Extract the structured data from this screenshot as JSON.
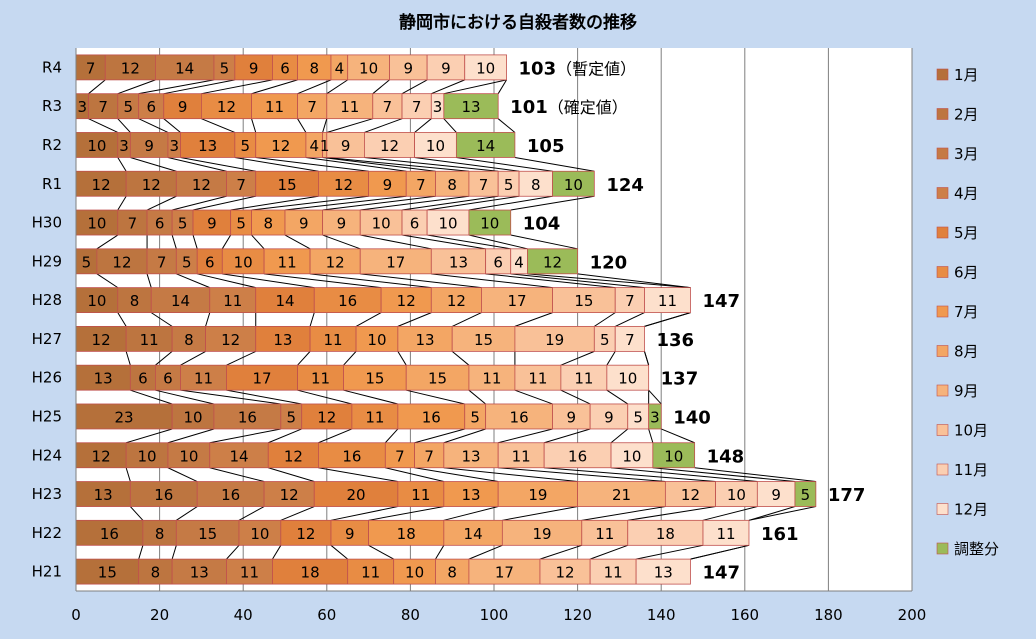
{
  "chart_data": {
    "type": "bar",
    "stacked": true,
    "orientation": "horizontal",
    "title": "静岡市における自殺者数の推移",
    "xlim": [
      0,
      200
    ],
    "xticks": [
      0,
      20,
      40,
      60,
      80,
      100,
      120,
      140,
      160,
      180,
      200
    ],
    "grid": true,
    "legend_position": "right",
    "categories": [
      "R4",
      "R3",
      "R2",
      "R1",
      "H30",
      "H29",
      "H28",
      "H27",
      "H26",
      "H25",
      "H24",
      "H23",
      "H22",
      "H21"
    ],
    "series": [
      {
        "name": "1月",
        "color": "#b5703a",
        "values": [
          7,
          3,
          10,
          12,
          10,
          5,
          10,
          12,
          13,
          23,
          12,
          13,
          16,
          15
        ]
      },
      {
        "name": "2月",
        "color": "#bd7540",
        "values": [
          12,
          7,
          3,
          12,
          7,
          12,
          8,
          11,
          6,
          10,
          10,
          16,
          8,
          8
        ]
      },
      {
        "name": "3月",
        "color": "#c57a45",
        "values": [
          14,
          5,
          9,
          12,
          6,
          7,
          14,
          8,
          6,
          16,
          10,
          16,
          15,
          13
        ]
      },
      {
        "name": "4月",
        "color": "#cd7f48",
        "values": [
          5,
          6,
          3,
          7,
          5,
          5,
          11,
          12,
          11,
          5,
          14,
          12,
          10,
          11
        ]
      },
      {
        "name": "5月",
        "color": "#e0803c",
        "values": [
          9,
          9,
          13,
          15,
          9,
          6,
          14,
          13,
          17,
          12,
          12,
          20,
          12,
          18
        ]
      },
      {
        "name": "6月",
        "color": "#e88c44",
        "values": [
          6,
          12,
          5,
          12,
          5,
          10,
          16,
          11,
          11,
          11,
          16,
          11,
          9,
          11
        ]
      },
      {
        "name": "7月",
        "color": "#f0994f",
        "values": [
          8,
          11,
          12,
          9,
          8,
          11,
          12,
          10,
          15,
          16,
          7,
          13,
          18,
          10
        ]
      },
      {
        "name": "8月",
        "color": "#f3a664",
        "values": [
          4,
          7,
          4,
          7,
          9,
          12,
          12,
          13,
          15,
          5,
          7,
          19,
          14,
          8
        ]
      },
      {
        "name": "9月",
        "color": "#f6b37c",
        "values": [
          10,
          11,
          1,
          8,
          9,
          17,
          17,
          15,
          11,
          16,
          13,
          21,
          19,
          17
        ]
      },
      {
        "name": "10月",
        "color": "#f9c198",
        "values": [
          9,
          7,
          9,
          7,
          10,
          13,
          15,
          19,
          11,
          9,
          11,
          12,
          11,
          12
        ]
      },
      {
        "name": "11月",
        "color": "#fbcfb2",
        "values": [
          9,
          7,
          12,
          5,
          6,
          6,
          7,
          5,
          11,
          9,
          16,
          10,
          18,
          11
        ]
      },
      {
        "name": "12月",
        "color": "#fde0cc",
        "values": [
          10,
          3,
          10,
          8,
          10,
          4,
          11,
          7,
          10,
          5,
          10,
          9,
          11,
          13
        ]
      },
      {
        "name": "調整分",
        "color": "#9bbb59",
        "values": [
          0,
          13,
          14,
          10,
          10,
          12,
          0,
          0,
          0,
          3,
          10,
          5,
          0,
          0
        ]
      }
    ],
    "segment_labels": [
      [
        "7",
        "12",
        "14",
        "5",
        "9",
        "6",
        "8",
        "4",
        "10",
        "9",
        "9",
        "10",
        ""
      ],
      [
        "3",
        "7",
        "5",
        "6",
        "9",
        "12",
        "11",
        "7",
        "11",
        "7",
        "7",
        "3",
        "13"
      ],
      [
        "10",
        "3",
        "9",
        "3",
        "13",
        "5",
        "12",
        "4",
        "1",
        "9",
        "12",
        "10",
        "14"
      ],
      [
        "12",
        "12",
        "12",
        "7",
        "15",
        "12",
        "9",
        "7",
        "8",
        "7",
        "5",
        "8",
        "10"
      ],
      [
        "10",
        "7",
        "6",
        "5",
        "9",
        "5",
        "8",
        "9",
        "9",
        "10",
        "6",
        "10",
        "10"
      ],
      [
        "5",
        "12",
        "7",
        "5",
        "6",
        "10",
        "11",
        "12",
        "17",
        "13",
        "6",
        "4",
        "12"
      ],
      [
        "10",
        "8",
        "14",
        "11",
        "14",
        "16",
        "12",
        "12",
        "17",
        "15",
        "7",
        "11",
        ""
      ],
      [
        "12",
        "11",
        "8",
        "12",
        "13",
        "11",
        "10",
        "13",
        "15",
        "19",
        "5",
        "7",
        ""
      ],
      [
        "13",
        "6",
        "6",
        "11",
        "17",
        "11",
        "15",
        "15",
        "11",
        "11",
        "11",
        "10",
        ""
      ],
      [
        "23",
        "10",
        "16",
        "5",
        "12",
        "11",
        "16",
        "5",
        "16",
        "9",
        "9",
        "5",
        "3"
      ],
      [
        "12",
        "10",
        "10",
        "14",
        "12",
        "16",
        "7",
        "7",
        "13",
        "11",
        "16",
        "10",
        "10"
      ],
      [
        "13",
        "16",
        "16",
        "12",
        "20",
        "11",
        "13",
        "19",
        "21",
        "12",
        "10",
        "9",
        "5"
      ],
      [
        "16",
        "8",
        "15",
        "10",
        "12",
        "9",
        "18",
        "14",
        "19",
        "11",
        "18",
        "11",
        ""
      ],
      [
        "15",
        "8",
        "13",
        "11",
        "18",
        "11",
        "10",
        "8",
        "17",
        "12",
        "11",
        "13",
        ""
      ]
    ],
    "totals": [
      "103",
      "101",
      "105",
      "124",
      "104",
      "120",
      "147",
      "136",
      "137",
      "140",
      "148",
      "177",
      "161",
      "147"
    ],
    "total_notes": [
      "（暫定値）",
      "（確定値）",
      "",
      "",
      "",
      "",
      "",
      "",
      "",
      "",
      "",
      "",
      "",
      ""
    ]
  }
}
